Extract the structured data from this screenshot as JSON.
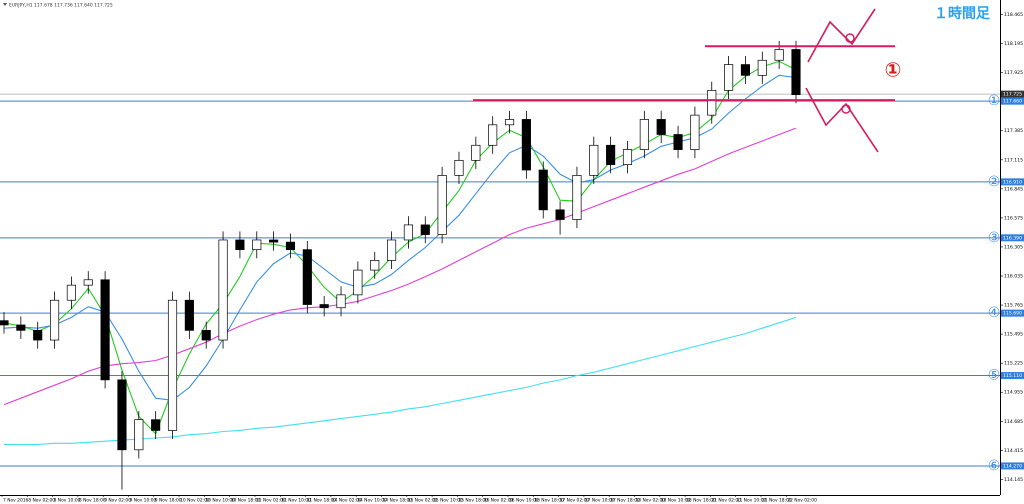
{
  "chart_data": {
    "type": "candlestick",
    "header": "EURJPY,H1 117.678 117.736 117.640 117.725",
    "timeframe_label": "１時間足",
    "ylim": [
      114.0,
      118.6
    ],
    "yticks": [
      114.145,
      114.415,
      114.685,
      114.955,
      115.225,
      115.495,
      115.765,
      116.035,
      116.305,
      116.575,
      116.845,
      117.115,
      117.385,
      117.655,
      117.925,
      118.195,
      118.465
    ],
    "time_labels": [
      "7 Nov 2016",
      "8 Nov 02:00",
      "8 Nov 10:00",
      "8 Nov 18:00",
      "9 Nov 02:00",
      "9 Nov 10:00",
      "9 Nov 18:00",
      "10 Nov 02:00",
      "10 Nov 10:00",
      "10 Nov 18:00",
      "11 Nov 02:00",
      "11 Nov 10:00",
      "11 Nov 18:00",
      "14 Nov 02:00",
      "14 Nov 10:00",
      "14 Nov 18:00",
      "15 Nov 02:00",
      "15 Nov 10:00",
      "15 Nov 18:00",
      "16 Nov 02:00",
      "16 Nov 10:00",
      "16 Nov 18:00",
      "17 Nov 02:00",
      "17 Nov 10:00",
      "17 Nov 18:00",
      "18 Nov 02:00",
      "18 Nov 10:00",
      "18 Nov 18:00",
      "21 Nov 02:00",
      "21 Nov 10:00",
      "21 Nov 18:00",
      "22 Nov 02:00"
    ],
    "open": [
      115.62,
      115.58,
      115.53,
      115.44,
      115.81,
      115.95,
      116.0,
      115.07,
      114.42,
      114.7,
      114.6,
      115.81,
      115.53,
      115.44,
      116.37,
      116.28,
      116.37,
      116.35,
      116.28,
      115.77,
      115.74,
      115.86,
      116.09,
      116.18,
      116.37,
      116.51,
      116.42,
      116.97,
      117.11,
      117.25,
      117.44,
      117.49,
      117.02,
      116.65,
      116.56,
      116.97,
      117.25,
      117.07,
      117.21,
      117.49,
      117.35,
      117.21,
      117.53,
      117.76,
      118.0,
      117.9,
      118.04,
      118.14
    ],
    "high": [
      115.7,
      115.66,
      115.61,
      115.89,
      116.03,
      116.08,
      116.08,
      115.15,
      114.78,
      114.78,
      115.89,
      115.89,
      115.61,
      116.45,
      116.45,
      116.45,
      116.45,
      116.43,
      116.36,
      115.85,
      115.94,
      116.17,
      116.26,
      116.45,
      116.59,
      116.59,
      117.05,
      117.19,
      117.33,
      117.52,
      117.57,
      117.57,
      117.1,
      116.73,
      117.05,
      117.33,
      117.33,
      117.29,
      117.57,
      117.57,
      117.43,
      117.61,
      117.84,
      118.08,
      118.08,
      118.12,
      118.22,
      118.22
    ],
    "low": [
      115.5,
      115.45,
      115.36,
      115.36,
      115.73,
      115.87,
      114.99,
      114.05,
      114.34,
      114.52,
      114.52,
      115.45,
      115.36,
      115.36,
      116.2,
      116.2,
      116.27,
      116.2,
      115.69,
      115.66,
      115.66,
      115.78,
      116.01,
      116.1,
      116.29,
      116.34,
      116.34,
      116.89,
      117.03,
      117.17,
      117.36,
      116.94,
      116.57,
      116.42,
      116.48,
      116.89,
      116.99,
      116.99,
      117.13,
      117.27,
      117.13,
      117.13,
      117.45,
      117.68,
      117.82,
      117.82,
      117.96,
      117.64
    ],
    "close": [
      115.58,
      115.53,
      115.44,
      115.81,
      115.95,
      116.0,
      115.07,
      114.42,
      114.7,
      114.6,
      115.81,
      115.53,
      115.44,
      116.37,
      116.28,
      116.37,
      116.35,
      116.28,
      115.77,
      115.74,
      115.86,
      116.09,
      116.18,
      116.37,
      116.51,
      116.42,
      116.97,
      117.11,
      117.25,
      117.44,
      117.49,
      117.02,
      116.65,
      116.56,
      116.97,
      117.25,
      117.07,
      117.21,
      117.49,
      117.35,
      117.21,
      117.53,
      117.76,
      118.0,
      117.9,
      118.04,
      118.14,
      117.72
    ],
    "series": [
      {
        "color": "#22cc22",
        "values": [
          115.6,
          115.57,
          115.52,
          115.59,
          115.73,
          115.92,
          115.67,
          115.16,
          114.73,
          114.57,
          114.98,
          115.31,
          115.59,
          115.78,
          116.03,
          116.34,
          116.33,
          116.3,
          116.13,
          115.93,
          115.79,
          115.9,
          116.04,
          116.21,
          116.35,
          116.43,
          116.63,
          116.83,
          117.11,
          117.27,
          117.39,
          117.32,
          117.05,
          116.74,
          116.73,
          116.93,
          117.1,
          117.18,
          117.26,
          117.35,
          117.32,
          117.37,
          117.5,
          117.76,
          117.89,
          117.98,
          118.03,
          117.95
        ]
      },
      {
        "color": "#3a8ee6",
        "values": [
          115.55,
          115.56,
          115.55,
          115.58,
          115.65,
          115.75,
          115.7,
          115.45,
          115.15,
          114.9,
          114.88,
          115.0,
          115.2,
          115.45,
          115.72,
          115.98,
          116.15,
          116.25,
          116.22,
          116.1,
          115.98,
          115.93,
          115.96,
          116.05,
          116.18,
          116.3,
          116.45,
          116.6,
          116.8,
          117.0,
          117.18,
          117.25,
          117.15,
          116.98,
          116.9,
          116.93,
          117.02,
          117.08,
          117.15,
          117.24,
          117.28,
          117.32,
          117.4,
          117.55,
          117.68,
          117.8,
          117.9,
          117.88
        ]
      },
      {
        "color": "#e040d0",
        "values": [
          114.84,
          114.9,
          114.96,
          115.02,
          115.08,
          115.15,
          115.2,
          115.22,
          115.23,
          115.25,
          115.3,
          115.36,
          115.42,
          115.5,
          115.57,
          115.63,
          115.68,
          115.72,
          115.74,
          115.75,
          115.77,
          115.8,
          115.85,
          115.9,
          115.96,
          116.03,
          116.1,
          116.18,
          116.26,
          116.34,
          116.42,
          116.48,
          116.52,
          116.56,
          116.62,
          116.68,
          116.74,
          116.8,
          116.86,
          116.92,
          116.98,
          117.03,
          117.1,
          117.17,
          117.23,
          117.29,
          117.35,
          117.41
        ]
      },
      {
        "color": "#40e0f0",
        "values": [
          114.47,
          114.47,
          114.47,
          114.48,
          114.48,
          114.49,
          114.5,
          114.51,
          114.52,
          114.53,
          114.54,
          114.56,
          114.57,
          114.59,
          114.6,
          114.62,
          114.63,
          114.65,
          114.67,
          114.69,
          114.71,
          114.73,
          114.75,
          114.77,
          114.8,
          114.82,
          114.85,
          114.88,
          114.91,
          114.94,
          114.97,
          115.0,
          115.04,
          115.07,
          115.11,
          115.14,
          115.18,
          115.22,
          115.26,
          115.3,
          115.34,
          115.38,
          115.42,
          115.46,
          115.5,
          115.55,
          115.6,
          115.65
        ]
      }
    ],
    "current_price": {
      "value": 117.725,
      "label": "117.725"
    },
    "levels": [
      {
        "name": "①",
        "price": {
          "value": 117.66,
          "label": "117.660"
        }
      },
      {
        "name": "②",
        "price": {
          "value": 116.91,
          "label": "116.910"
        }
      },
      {
        "name": "③",
        "price": {
          "value": 116.39,
          "label": "116.390"
        }
      },
      {
        "name": "④",
        "price": {
          "value": 115.69,
          "label": "115.690"
        }
      },
      {
        "name": "⑤",
        "price": {
          "value": 115.11,
          "label": "115.110"
        }
      },
      {
        "name": "⑥",
        "price": {
          "value": 114.27,
          "label": "114.270"
        }
      }
    ],
    "annotation": {
      "label": "①",
      "resistance": 118.17,
      "support": 117.67
    }
  }
}
